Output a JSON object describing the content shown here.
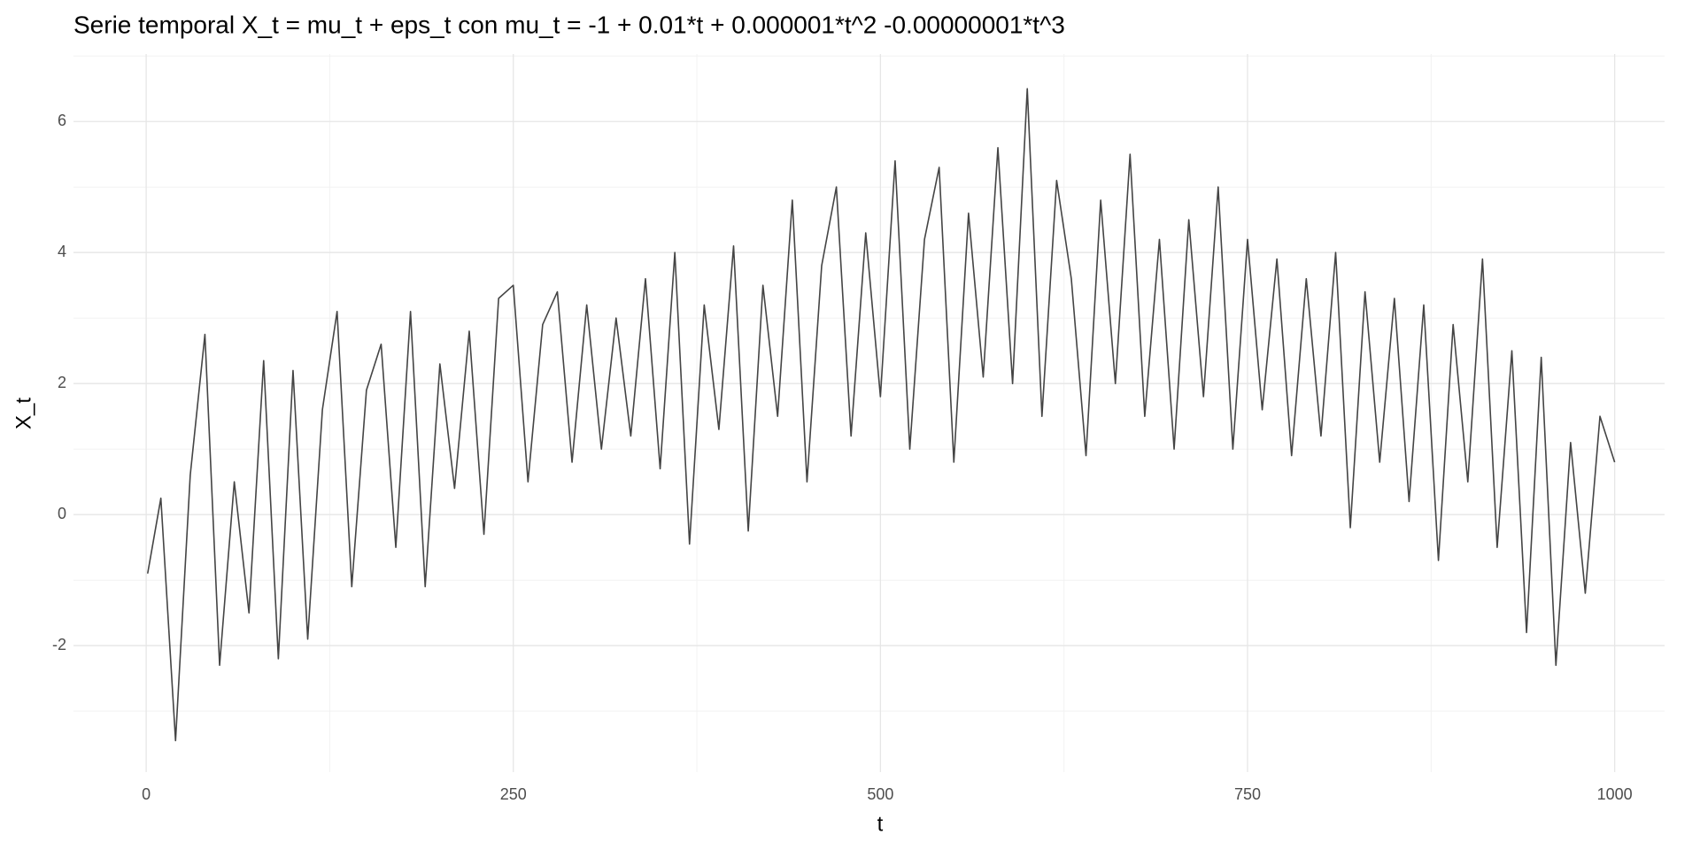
{
  "chart_data": {
    "type": "line",
    "title": "Serie temporal X_t = mu_t + eps_t con mu_t = -1 + 0.01*t + 0.000001*t^2 -0.00000001*t^3",
    "x_label": "t",
    "y_label": "X_t",
    "x": [
      1,
      10,
      20,
      30,
      40,
      50,
      60,
      70,
      80,
      90,
      100,
      110,
      120,
      130,
      140,
      150,
      160,
      170,
      180,
      190,
      200,
      210,
      220,
      230,
      240,
      250,
      260,
      270,
      280,
      290,
      300,
      310,
      320,
      330,
      340,
      350,
      360,
      370,
      380,
      390,
      400,
      410,
      420,
      430,
      440,
      450,
      460,
      470,
      480,
      490,
      500,
      510,
      520,
      530,
      540,
      550,
      560,
      570,
      580,
      590,
      600,
      610,
      620,
      630,
      640,
      650,
      660,
      670,
      680,
      690,
      700,
      710,
      720,
      730,
      740,
      750,
      760,
      770,
      780,
      790,
      800,
      810,
      820,
      830,
      840,
      850,
      860,
      870,
      880,
      890,
      900,
      910,
      920,
      930,
      940,
      950,
      960,
      970,
      980,
      990,
      1000
    ],
    "series": [
      {
        "name": "X_t",
        "color": "#444444",
        "values": [
          -0.9,
          0.25,
          -3.45,
          0.6,
          2.75,
          -2.3,
          0.5,
          -1.5,
          2.35,
          -2.2,
          2.2,
          -1.9,
          1.6,
          3.1,
          -1.1,
          1.9,
          2.6,
          -0.5,
          3.1,
          -1.1,
          2.3,
          0.4,
          2.8,
          -0.3,
          3.3,
          3.5,
          0.5,
          2.9,
          3.4,
          0.8,
          3.2,
          1.0,
          3.0,
          1.2,
          3.6,
          0.7,
          4.0,
          -0.45,
          3.2,
          1.3,
          4.1,
          -0.25,
          3.5,
          1.5,
          4.8,
          0.5,
          3.8,
          5.0,
          1.2,
          4.3,
          1.8,
          5.4,
          1.0,
          4.2,
          5.3,
          0.8,
          4.6,
          2.1,
          5.6,
          2.0,
          6.5,
          1.5,
          5.1,
          3.6,
          0.9,
          4.8,
          2.0,
          5.5,
          1.5,
          4.2,
          1.0,
          4.5,
          1.8,
          5.0,
          1.0,
          4.2,
          1.6,
          3.9,
          0.9,
          3.6,
          1.2,
          4.0,
          -0.2,
          3.4,
          0.8,
          3.3,
          0.2,
          3.2,
          -0.7,
          2.9,
          0.5,
          3.9,
          -0.5,
          2.5,
          -1.8,
          2.4,
          -2.3,
          1.1,
          -1.2,
          1.5,
          0.8
        ]
      }
    ],
    "xlim": [
      -49.5,
      1034
    ],
    "ylim": [
      -3.93,
      7.03
    ],
    "xticks": [
      0,
      250,
      500,
      750,
      1000
    ],
    "yticks": [
      -2,
      0,
      2,
      4,
      6
    ],
    "grid": true
  }
}
